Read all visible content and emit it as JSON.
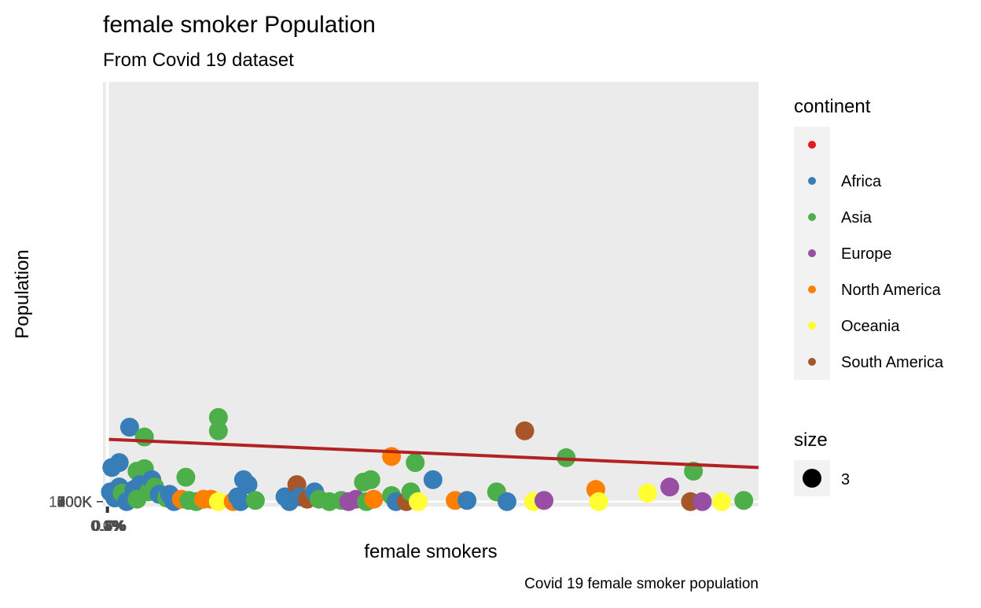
{
  "chart_data": {
    "type": "scatter",
    "title": "female smoker Population",
    "subtitle": "From Covid 19 dataset",
    "caption": "Covid 19 female smoker population",
    "xlabel": "female smokers",
    "ylabel": "Population",
    "x_tick_labels": [
      "0.0%",
      "0.1%",
      "0.2%",
      "0.3%",
      "0.4%",
      "0.5%",
      "0.6%",
      "0.7%"
    ],
    "y_tick_labels": [
      "0K",
      "100K",
      "200K",
      "300K",
      "400K",
      "500K",
      "600K",
      "700K",
      "800K",
      "900K",
      "1000K"
    ],
    "x_domain": [
      -0.3,
      44
    ],
    "y_domain": [
      -20,
      1720
    ],
    "legend": {
      "position": "right",
      "color_title": "continent",
      "size_title": "size",
      "size_label": "3",
      "entries": [
        {
          "label": "",
          "color": "#E41A1C"
        },
        {
          "label": "Africa",
          "color": "#377EB8"
        },
        {
          "label": "Asia",
          "color": "#4DAF4A"
        },
        {
          "label": "Europe",
          "color": "#984EA3"
        },
        {
          "label": "North America",
          "color": "#FF7F00"
        },
        {
          "label": "Oceania",
          "color": "#FFFF33"
        },
        {
          "label": "South America",
          "color": "#A65628"
        }
      ]
    },
    "trend_line": {
      "color": "#B22222",
      "x": [
        0.1,
        44
      ],
      "y": [
        255,
        140
      ]
    },
    "points": [
      {
        "x": 0.2,
        "y": 40,
        "c": "Africa"
      },
      {
        "x": 0.5,
        "y": 15,
        "c": "Africa"
      },
      {
        "x": 0.8,
        "y": 60,
        "c": "Africa"
      },
      {
        "x": 1.0,
        "y": 35,
        "c": "Asia"
      },
      {
        "x": 1.3,
        "y": 0,
        "c": "Africa"
      },
      {
        "x": 0.3,
        "y": 140,
        "c": "Africa"
      },
      {
        "x": 0.8,
        "y": 160,
        "c": "Africa"
      },
      {
        "x": 1.5,
        "y": 305,
        "c": "Africa"
      },
      {
        "x": 2.5,
        "y": 265,
        "c": "Asia"
      },
      {
        "x": 2.0,
        "y": 125,
        "c": "Asia"
      },
      {
        "x": 2.5,
        "y": 135,
        "c": "Asia"
      },
      {
        "x": 1.8,
        "y": 50,
        "c": "Africa"
      },
      {
        "x": 2.2,
        "y": 70,
        "c": "Africa"
      },
      {
        "x": 2.0,
        "y": 10,
        "c": "Asia"
      },
      {
        "x": 2.8,
        "y": 40,
        "c": "Asia"
      },
      {
        "x": 3.0,
        "y": 90,
        "c": "Africa"
      },
      {
        "x": 3.2,
        "y": 60,
        "c": "Asia"
      },
      {
        "x": 3.5,
        "y": 30,
        "c": "Africa"
      },
      {
        "x": 4.0,
        "y": 15,
        "c": "Asia"
      },
      {
        "x": 4.5,
        "y": 0,
        "c": "Africa"
      },
      {
        "x": 4.2,
        "y": 30,
        "c": "Africa"
      },
      {
        "x": 5.0,
        "y": 10,
        "c": "North America"
      },
      {
        "x": 5.3,
        "y": 100,
        "c": "Asia"
      },
      {
        "x": 5.5,
        "y": 5,
        "c": "Asia"
      },
      {
        "x": 6.0,
        "y": 0,
        "c": "Asia"
      },
      {
        "x": 6.5,
        "y": 10,
        "c": "North America"
      },
      {
        "x": 7.0,
        "y": 10,
        "c": "North America"
      },
      {
        "x": 7.5,
        "y": 0,
        "c": "Oceania"
      },
      {
        "x": 7.5,
        "y": 345,
        "c": "Asia"
      },
      {
        "x": 7.5,
        "y": 290,
        "c": "Asia"
      },
      {
        "x": 8.5,
        "y": 0,
        "c": "North America"
      },
      {
        "x": 8.8,
        "y": 20,
        "c": "Africa"
      },
      {
        "x": 9.0,
        "y": 0,
        "c": "Africa"
      },
      {
        "x": 9.2,
        "y": 90,
        "c": "Africa"
      },
      {
        "x": 9.5,
        "y": 70,
        "c": "Africa"
      },
      {
        "x": 10.0,
        "y": 5,
        "c": "Asia"
      },
      {
        "x": 12.0,
        "y": 20,
        "c": "Africa"
      },
      {
        "x": 12.3,
        "y": 0,
        "c": "Africa"
      },
      {
        "x": 12.8,
        "y": 70,
        "c": "South America"
      },
      {
        "x": 13.0,
        "y": 20,
        "c": "Africa"
      },
      {
        "x": 13.5,
        "y": 10,
        "c": "South America"
      },
      {
        "x": 14.0,
        "y": 40,
        "c": "Africa"
      },
      {
        "x": 14.3,
        "y": 10,
        "c": "Asia"
      },
      {
        "x": 15.0,
        "y": 0,
        "c": "Asia"
      },
      {
        "x": 15.8,
        "y": 5,
        "c": "Asia"
      },
      {
        "x": 16.3,
        "y": 0,
        "c": "Europe"
      },
      {
        "x": 16.8,
        "y": 10,
        "c": "Europe"
      },
      {
        "x": 17.3,
        "y": 80,
        "c": "Asia"
      },
      {
        "x": 17.5,
        "y": 0,
        "c": "Asia"
      },
      {
        "x": 17.8,
        "y": 90,
        "c": "Asia"
      },
      {
        "x": 18.0,
        "y": 10,
        "c": "North America"
      },
      {
        "x": 19.2,
        "y": 185,
        "c": "North America"
      },
      {
        "x": 19.2,
        "y": 25,
        "c": "Asia"
      },
      {
        "x": 19.5,
        "y": 0,
        "c": "Africa"
      },
      {
        "x": 20.2,
        "y": 0,
        "c": "South America"
      },
      {
        "x": 20.5,
        "y": 40,
        "c": "Asia"
      },
      {
        "x": 20.8,
        "y": 160,
        "c": "Asia"
      },
      {
        "x": 21.0,
        "y": 0,
        "c": "Oceania"
      },
      {
        "x": 22.0,
        "y": 90,
        "c": "Africa"
      },
      {
        "x": 23.5,
        "y": 5,
        "c": "North America"
      },
      {
        "x": 24.3,
        "y": 5,
        "c": "Africa"
      },
      {
        "x": 26.3,
        "y": 40,
        "c": "Asia"
      },
      {
        "x": 27.0,
        "y": 0,
        "c": "Africa"
      },
      {
        "x": 28.2,
        "y": 290,
        "c": "South America"
      },
      {
        "x": 28.8,
        "y": 0,
        "c": "Oceania"
      },
      {
        "x": 29.5,
        "y": 5,
        "c": "Europe"
      },
      {
        "x": 31.0,
        "y": 180,
        "c": "Asia"
      },
      {
        "x": 33.0,
        "y": 50,
        "c": "North America"
      },
      {
        "x": 33.2,
        "y": 0,
        "c": "Oceania"
      },
      {
        "x": 36.5,
        "y": 35,
        "c": "Oceania"
      },
      {
        "x": 38.0,
        "y": 60,
        "c": "Europe"
      },
      {
        "x": 39.4,
        "y": 0,
        "c": "South America"
      },
      {
        "x": 39.6,
        "y": 125,
        "c": "Asia"
      },
      {
        "x": 40.2,
        "y": 0,
        "c": "Europe"
      },
      {
        "x": 41.5,
        "y": 0,
        "c": "Oceania"
      },
      {
        "x": 43.0,
        "y": 5,
        "c": "Asia"
      }
    ]
  }
}
